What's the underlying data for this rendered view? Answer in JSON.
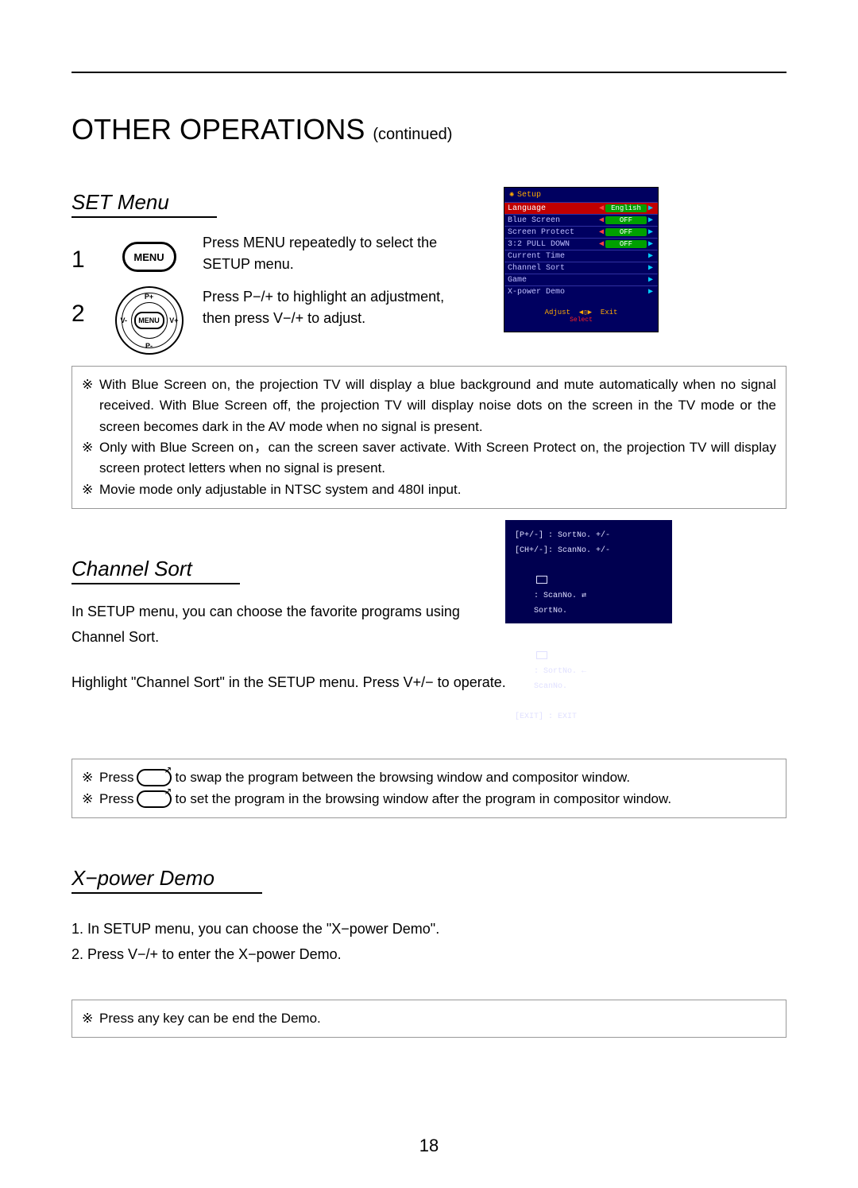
{
  "page_number": "18",
  "main_title": "OTHER OPERATIONS",
  "main_title_suffix": "(continued)",
  "sections": {
    "set": {
      "title": "SET Menu",
      "step1_num": "1",
      "step1_text": "Press MENU repeatedly to select the SETUP menu.",
      "step2_num": "2",
      "step2_text": "Press P−/+ to highlight an adjustment, then press V−/+  to adjust.",
      "menu_label": "MENU",
      "dpad": {
        "center": "MENU",
        "up": "P+",
        "down": "P-",
        "left": "V-",
        "right": "V+"
      },
      "notes": [
        "With Blue Screen on, the projection TV will display a blue background and mute automatically when no signal received. With Blue Screen off, the projection TV will display noise dots on the screen in the TV mode or the screen becomes dark in the AV mode when no signal is present.",
        "Only with Blue Screen on，can the screen saver activate. With Screen Protect on, the projection TV will display screen protect letters when no signal is present.",
        "Movie mode only adjustable in NTSC system and 480I input."
      ]
    },
    "chsort": {
      "title": "Channel Sort",
      "line1": "In SETUP menu, you can choose the favorite programs using Channel Sort.",
      "line2": "Highlight \"Channel Sort\" in the SETUP menu. Press V+/− to operate.",
      "notes": [
        "to swap the program between the browsing window and compositor window.",
        "to set the program in the browsing window after the program in compositor window."
      ],
      "press": "Press"
    },
    "xpower": {
      "title": "X−power Demo",
      "line1": "1. In SETUP menu, you can choose the \"X−power Demo\".",
      "line2": "2. Press V−/+ to enter the X−power Demo.",
      "note": "Press any key can be end the Demo."
    }
  },
  "osd_setup": {
    "title": "Setup",
    "colors": {
      "bg": "#000060",
      "sel_bg": "#c00000",
      "val_bg": "#00a000",
      "arrow_right": "#00d0ff",
      "arrow_left": "#ff4040",
      "title_color": "#ffaa00"
    },
    "rows": [
      {
        "label": "Language",
        "value": "English",
        "left": true,
        "right": true,
        "selected": true
      },
      {
        "label": "Blue Screen",
        "value": "OFF",
        "left": true,
        "right": true
      },
      {
        "label": "Screen Protect",
        "value": "OFF",
        "left": true,
        "right": true
      },
      {
        "label": "3:2 PULL DOWN",
        "value": "OFF",
        "left": true,
        "right": true
      },
      {
        "label": "Current Time",
        "value": "",
        "left": false,
        "right": true
      },
      {
        "label": "Channel Sort",
        "value": "",
        "left": false,
        "right": true
      },
      {
        "label": "Game",
        "value": "",
        "left": false,
        "right": true
      },
      {
        "label": "X-power Demo",
        "value": "",
        "left": false,
        "right": true
      }
    ],
    "footer_adjust": "Adjust",
    "footer_exit": "Exit",
    "footer_select": "Select"
  },
  "osd_chsort": {
    "l1": "[P+/-] : SortNo. +/-",
    "l2": "[CH+/-]: ScanNo. +/-",
    "l3a": ": ScanNo.",
    "l3b": "SortNo.",
    "l4a": ": SortNo.",
    "l4b": "ScanNo.",
    "l5": "[EXIT] : EXIT"
  },
  "symbols": {
    "note_mark": "※"
  }
}
